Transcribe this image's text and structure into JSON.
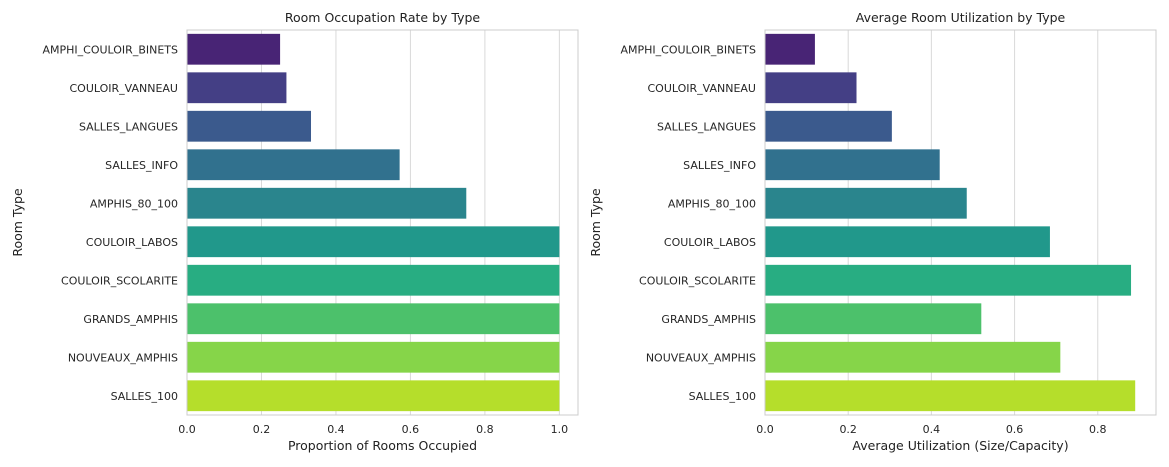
{
  "chart_data": [
    {
      "type": "bar",
      "orientation": "horizontal",
      "title": "Room Occupation Rate by Type",
      "xlabel": "Proportion of Rooms Occupied",
      "ylabel": "Room Type",
      "xlim": [
        0,
        1.05
      ],
      "xticks": [
        "0.0",
        "0.2",
        "0.4",
        "0.6",
        "0.8",
        "1.0"
      ],
      "grid": true,
      "categories": [
        "AMPHI_COULOIR_BINETS",
        "COULOIR_VANNEAU",
        "SALLES_LANGUES",
        "SALLES_INFO",
        "AMPHIS_80_100",
        "COULOIR_LABOS",
        "COULOIR_SCOLARITE",
        "GRANDS_AMPHIS",
        "NOUVEAUX_AMPHIS",
        "SALLES_100"
      ],
      "values": [
        0.25,
        0.267,
        0.333,
        0.571,
        0.75,
        1.0,
        1.0,
        1.0,
        1.0,
        1.0
      ],
      "colors": [
        "#482475",
        "#443f85",
        "#3b5a8d",
        "#31718e",
        "#2a858d",
        "#21988b",
        "#28ad82",
        "#4cc16b",
        "#86d549",
        "#b5de2b"
      ]
    },
    {
      "type": "bar",
      "orientation": "horizontal",
      "title": "Average Room Utilization by Type",
      "xlabel": "Average Utilization (Size/Capacity)",
      "ylabel": "Room Type",
      "xlim": [
        0,
        0.94
      ],
      "xticks": [
        "0.0",
        "0.2",
        "0.4",
        "0.6",
        "0.8"
      ],
      "grid": true,
      "categories": [
        "AMPHI_COULOIR_BINETS",
        "COULOIR_VANNEAU",
        "SALLES_LANGUES",
        "SALLES_INFO",
        "AMPHIS_80_100",
        "COULOIR_LABOS",
        "COULOIR_SCOLARITE",
        "GRANDS_AMPHIS",
        "NOUVEAUX_AMPHIS",
        "SALLES_100"
      ],
      "values": [
        0.12,
        0.22,
        0.305,
        0.42,
        0.485,
        0.685,
        0.88,
        0.52,
        0.71,
        0.89
      ],
      "colors": [
        "#482475",
        "#443f85",
        "#3b5a8d",
        "#31718e",
        "#2a858d",
        "#21988b",
        "#28ad82",
        "#4cc16b",
        "#86d549",
        "#b5de2b"
      ]
    }
  ]
}
